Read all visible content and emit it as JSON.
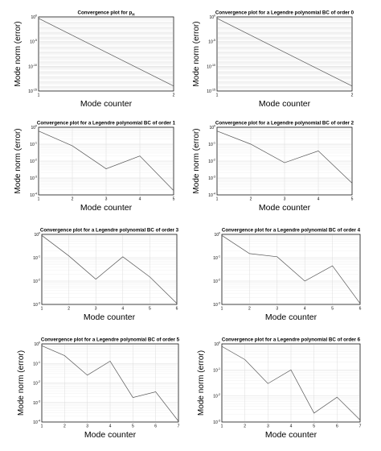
{
  "chart_data": [
    {
      "type": "line",
      "title": "Convergence plot for p",
      "title_subscript": "H",
      "xlabel": "Mode counter",
      "ylabel": "Mode norm (error)",
      "yscale": "log",
      "grid": true,
      "x": [
        1,
        2
      ],
      "xticks": [
        "1",
        "2"
      ],
      "yticks": [
        "10^0",
        "10^-5",
        "10^-10",
        "10^-15"
      ],
      "ylim": [
        1e-15,
        1
      ],
      "series": [
        {
          "values": [
            0.5,
            1e-14
          ]
        }
      ]
    },
    {
      "type": "line",
      "title": "Convergence plot for a Legendre polynomial BC of order 0",
      "xlabel": "Mode counter",
      "ylabel": "Mode norm (error)",
      "yscale": "log",
      "grid": true,
      "x": [
        1,
        2
      ],
      "xticks": [
        "1",
        "2"
      ],
      "yticks": [
        "10^0",
        "10^-5",
        "10^-10",
        "10^-15"
      ],
      "ylim": [
        1e-15,
        1
      ],
      "series": [
        {
          "values": [
            0.5,
            1e-14
          ]
        }
      ]
    },
    {
      "type": "line",
      "title": "Convergence plot for a Legendre polynomial BC of order 1",
      "xlabel": "Mode counter",
      "ylabel": "Mode norm (error)",
      "yscale": "log",
      "grid": true,
      "x": [
        1,
        2,
        3,
        4,
        5
      ],
      "xticks": [
        "1",
        "2",
        "3",
        "4",
        "5"
      ],
      "yticks": [
        "10^0",
        "10^-1",
        "10^-2",
        "10^-3",
        "10^-4"
      ],
      "ylim": [
        0.0001,
        1
      ],
      "series": [
        {
          "values": [
            0.6,
            0.08,
            0.0035,
            0.02,
            0.00018
          ]
        }
      ]
    },
    {
      "type": "line",
      "title": "Convergence plot for a Legendre polynomial BC of order 2",
      "xlabel": "Mode counter",
      "ylabel": "Mode norm (error)",
      "yscale": "log",
      "grid": true,
      "x": [
        1,
        2,
        3,
        4,
        5
      ],
      "xticks": [
        "1",
        "2",
        "3",
        "4",
        "5"
      ],
      "yticks": [
        "10^0",
        "10^-1",
        "10^-2",
        "10^-3",
        "10^-4"
      ],
      "ylim": [
        0.0001,
        1
      ],
      "series": [
        {
          "values": [
            0.6,
            0.1,
            0.008,
            0.04,
            0.0005
          ]
        }
      ]
    },
    {
      "type": "line",
      "title": "Convergence plot for a Legendre polynomial BC of order 3",
      "xlabel": "Mode counter",
      "ylabel": "",
      "yscale": "log",
      "grid": true,
      "x": [
        1,
        2,
        3,
        4,
        5,
        6
      ],
      "xticks": [
        "1",
        "2",
        "3",
        "4",
        "5",
        "6"
      ],
      "yticks": [
        "10^0",
        "10^-1",
        "10^-2",
        "10^-3"
      ],
      "ylim": [
        0.001,
        1
      ],
      "series": [
        {
          "values": [
            0.9,
            0.12,
            0.012,
            0.11,
            0.015,
            0.0011
          ]
        }
      ]
    },
    {
      "type": "line",
      "title": "Convergence plot for a Legendre polynomial BC of order 4",
      "xlabel": "Mode counter",
      "ylabel": "",
      "yscale": "log",
      "grid": true,
      "x": [
        1,
        2,
        3,
        4,
        5,
        6
      ],
      "xticks": [
        "1",
        "2",
        "3",
        "4",
        "5",
        "6"
      ],
      "yticks": [
        "10^0",
        "10^-1",
        "10^-2",
        "10^-3"
      ],
      "ylim": [
        0.001,
        1
      ],
      "series": [
        {
          "values": [
            0.9,
            0.15,
            0.11,
            0.01,
            0.045,
            0.0011
          ]
        }
      ]
    },
    {
      "type": "line",
      "title": "Convergence plot for a Legendre polynomial BC of order 5",
      "xlabel": "Mode counter",
      "ylabel": "Mode norm (error)",
      "yscale": "log",
      "grid": true,
      "x": [
        1,
        2,
        3,
        4,
        5,
        6,
        7
      ],
      "xticks": [
        "1",
        "2",
        "3",
        "4",
        "5",
        "6",
        "7"
      ],
      "yticks": [
        "10^0",
        "10^-1",
        "10^-2",
        "10^-3",
        "10^-4"
      ],
      "ylim": [
        0.0001,
        1
      ],
      "series": [
        {
          "values": [
            0.8,
            0.25,
            0.025,
            0.13,
            0.0018,
            0.0035,
            0.00011
          ]
        }
      ]
    },
    {
      "type": "line",
      "title": "Convergence plot for a Legendre polynomial BC of order 6",
      "xlabel": "Mode counter",
      "ylabel": "Mode norm (error)",
      "yscale": "log",
      "grid": true,
      "x": [
        1,
        2,
        3,
        4,
        5,
        6,
        7
      ],
      "xticks": [
        "1",
        "2",
        "3",
        "4",
        "5",
        "6",
        "7"
      ],
      "yticks": [
        "10^0",
        "10^-1",
        "10^-2",
        "10^-3"
      ],
      "ylim": [
        0.001,
        1
      ],
      "series": [
        {
          "values": [
            0.8,
            0.25,
            0.03,
            0.1,
            0.0022,
            0.009,
            0.0012
          ]
        }
      ]
    }
  ]
}
